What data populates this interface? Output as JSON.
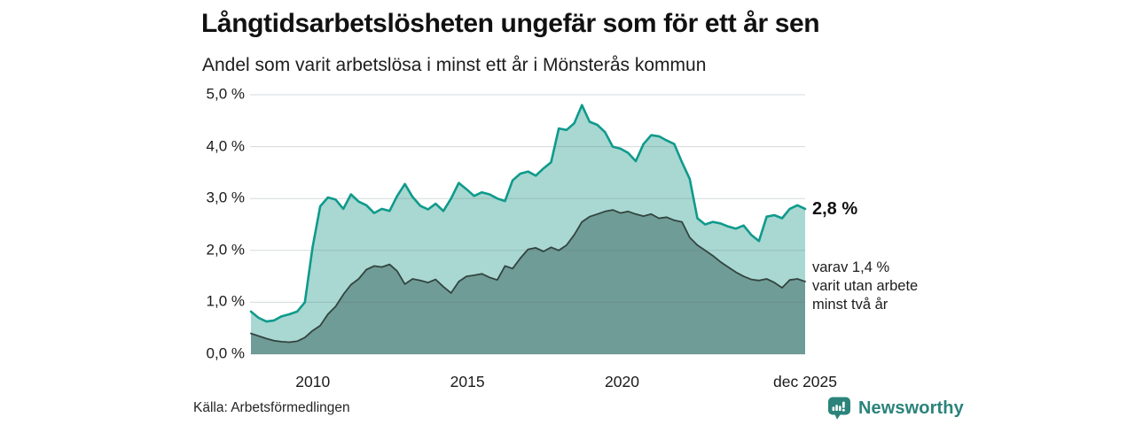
{
  "header": {
    "title": "Långtidsarbetslösheten ungefär som för ett år sen",
    "subtitle": "Andel som varit arbetslösa i minst ett år i Mönsterås kommun"
  },
  "chart_data": {
    "type": "area",
    "title": "Långtidsarbetslösheten ungefär som för ett år sen",
    "subtitle": "Andel som varit arbetslösa i minst ett år i Mönsterås kommun",
    "unit": "%",
    "x_range": [
      2008.0,
      2025.92
    ],
    "ylim": [
      0,
      5
    ],
    "grid": true,
    "grid_color": "rgba(105,120,130,0.28)",
    "legend_position": "none",
    "y_ticks": [
      {
        "value": 0,
        "label": "0,0 %"
      },
      {
        "value": 1,
        "label": "1,0 %"
      },
      {
        "value": 2,
        "label": "2,0 %"
      },
      {
        "value": 3,
        "label": "3,0 %"
      },
      {
        "value": 4,
        "label": "4,0 %"
      },
      {
        "value": 5,
        "label": "5,0 %"
      }
    ],
    "x_ticks": [
      {
        "year": 2010,
        "label": "2010"
      },
      {
        "year": 2015,
        "label": "2015"
      },
      {
        "year": 2020,
        "label": "2020"
      },
      {
        "year": 2025.92,
        "label": "dec 2025"
      }
    ],
    "series": [
      {
        "name": "Andel som varit arbetslösa i minst ett år",
        "color": "#0f9a8c",
        "fill": "#a8d8d1",
        "stroke_width": 2.6,
        "values": [
          0.82,
          0.7,
          0.63,
          0.65,
          0.73,
          0.77,
          0.82,
          1.0,
          2.05,
          2.85,
          3.02,
          2.98,
          2.8,
          3.08,
          2.94,
          2.87,
          2.72,
          2.8,
          2.76,
          3.05,
          3.28,
          3.03,
          2.86,
          2.79,
          2.9,
          2.76,
          3.0,
          3.3,
          3.18,
          3.05,
          3.12,
          3.08,
          3.0,
          2.95,
          3.35,
          3.48,
          3.52,
          3.44,
          3.58,
          3.7,
          4.35,
          4.32,
          4.45,
          4.8,
          4.48,
          4.42,
          4.28,
          4.0,
          3.96,
          3.88,
          3.72,
          4.05,
          4.22,
          4.2,
          4.12,
          4.05,
          3.7,
          3.38,
          2.62,
          2.5,
          2.55,
          2.52,
          2.46,
          2.42,
          2.48,
          2.3,
          2.18,
          2.65,
          2.68,
          2.62,
          2.8,
          2.87,
          2.8
        ]
      },
      {
        "name": "varav utan arbete minst två år",
        "color": "#334440",
        "fill": "#6f9c96",
        "stroke_width": 1.8,
        "values": [
          0.4,
          0.35,
          0.3,
          0.26,
          0.24,
          0.23,
          0.25,
          0.32,
          0.45,
          0.55,
          0.77,
          0.92,
          1.15,
          1.34,
          1.45,
          1.63,
          1.7,
          1.68,
          1.73,
          1.6,
          1.35,
          1.45,
          1.42,
          1.38,
          1.44,
          1.3,
          1.18,
          1.4,
          1.5,
          1.52,
          1.55,
          1.48,
          1.43,
          1.7,
          1.65,
          1.85,
          2.02,
          2.05,
          1.98,
          2.06,
          2.0,
          2.1,
          2.3,
          2.55,
          2.65,
          2.7,
          2.75,
          2.78,
          2.72,
          2.75,
          2.7,
          2.66,
          2.7,
          2.62,
          2.64,
          2.58,
          2.55,
          2.25,
          2.1,
          2.0,
          1.9,
          1.78,
          1.68,
          1.58,
          1.5,
          1.44,
          1.42,
          1.45,
          1.38,
          1.28,
          1.43,
          1.45,
          1.4
        ]
      }
    ],
    "end_labels": {
      "total": "2,8 %",
      "total_value": 2.8,
      "subset_lines": [
        "varav 1,4 %",
        "varit utan arbete",
        "minst två år"
      ],
      "subset_value": 1.4
    }
  },
  "footer": {
    "source": "Källa: Arbetsförmedlingen",
    "brand": "Newsworthy",
    "brand_color": "#2b837b"
  }
}
